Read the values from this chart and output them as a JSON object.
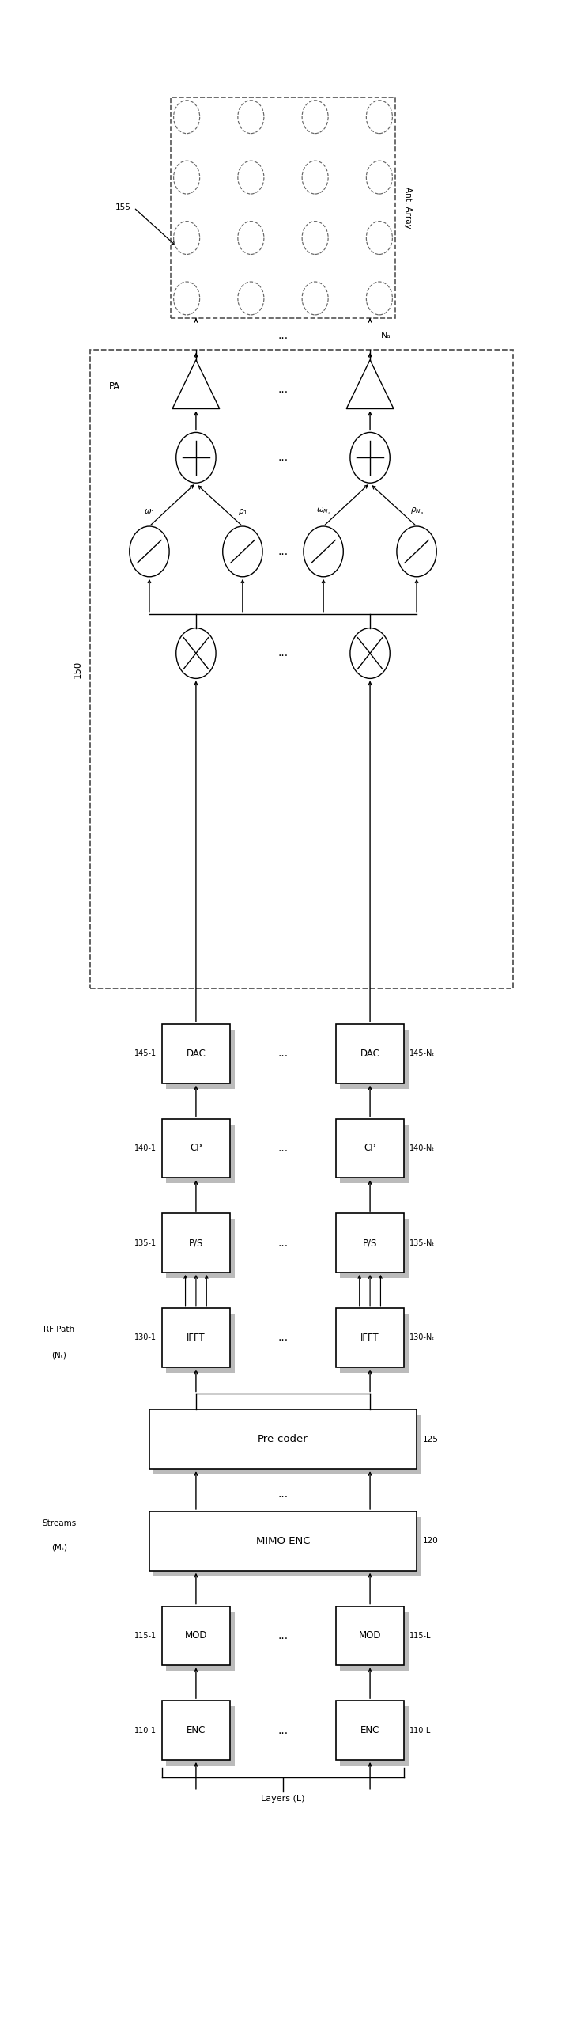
{
  "fig_width": 7.16,
  "fig_height": 25.69,
  "bg_color": "#ffffff",
  "lc": "#000000",
  "xl": 3.1,
  "xr": 5.9,
  "xlim": [
    0,
    9.0
  ],
  "ylim": [
    0,
    25.69
  ],
  "labels": {
    "ant_array": "Ant. Array",
    "ant_num": "155",
    "Na": "Nₐ",
    "pa": "PA",
    "box150": "150",
    "dac1": "145-1",
    "dacN": "145-Nₜ",
    "cp1": "140-1",
    "cpN": "140-Nₜ",
    "ps1": "135-1",
    "psN": "135-Nₜ",
    "ifft1": "130-1",
    "ifftN": "130-Nₜ",
    "precoder": "Pre-coder",
    "precoder_num": "125",
    "streams": "Streams",
    "streams_sub": "(Mₜ)",
    "rfpath": "RF Path",
    "rfpath_sub": "(Nₜ)",
    "mimo": "MIMO ENC",
    "mimo_num": "120",
    "mod1": "115-1",
    "modL": "115-L",
    "enc1": "110-1",
    "encL": "110-L",
    "layers": "Layers (L)"
  }
}
